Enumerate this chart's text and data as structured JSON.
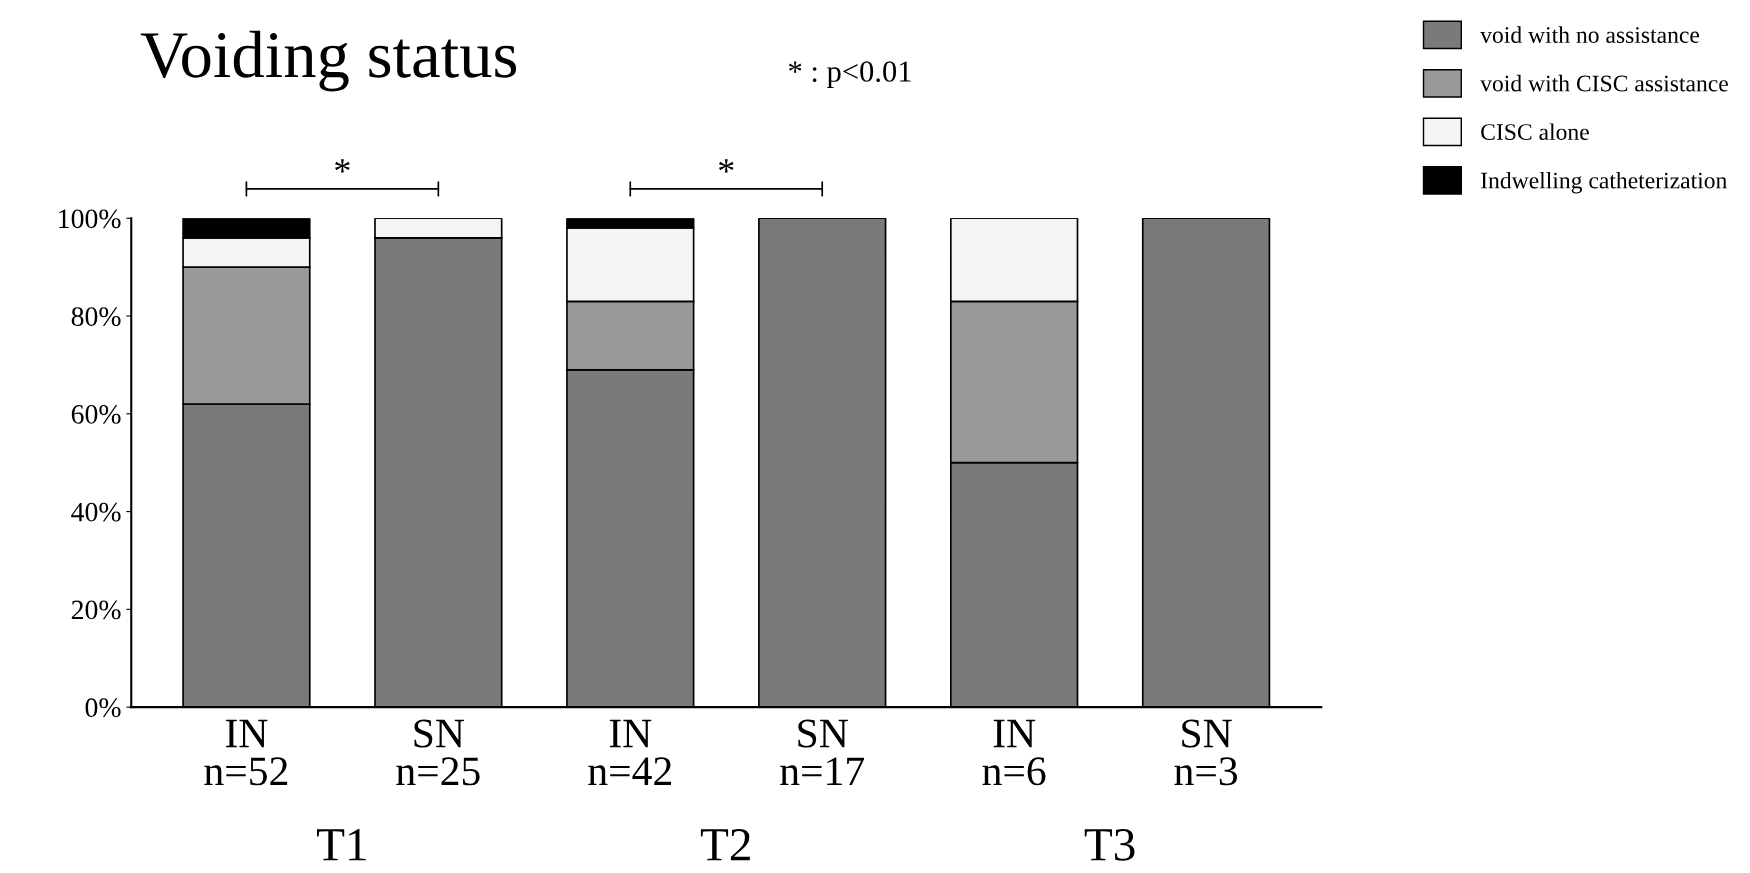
{
  "chart_data": {
    "type": "bar",
    "title": "Voiding status",
    "stacked": true,
    "categories": [
      "IN\nn=52",
      "SN\nn=25",
      "IN\nn=42",
      "SN\nn=17",
      "IN\nn=6",
      "SN\nn=3"
    ],
    "series": [
      {
        "name": "void with no assistance",
        "color": "#7a7a7a",
        "values": [
          62,
          96,
          69,
          100,
          50,
          100
        ]
      },
      {
        "name": "void with CISC assistance",
        "color": "#999999",
        "values": [
          28,
          0,
          14,
          0,
          33,
          0
        ]
      },
      {
        "name": "CISC alone",
        "color": "#f4f4f4",
        "values": [
          6,
          4,
          15,
          0,
          17,
          0
        ]
      },
      {
        "name": "Indwelling catheterization",
        "color": "#000000",
        "values": [
          4,
          0,
          2,
          0,
          0,
          0
        ]
      }
    ],
    "ylim": [
      0,
      100
    ],
    "yticks": [
      {
        "value": 0,
        "label": "0%"
      },
      {
        "value": 20,
        "label": "20%"
      },
      {
        "value": 40,
        "label": "40%"
      },
      {
        "value": 60,
        "label": "60%"
      },
      {
        "value": 80,
        "label": "80%"
      },
      {
        "value": 100,
        "label": "100%"
      }
    ],
    "grid": false,
    "legend": "top right",
    "annotations": [
      "* : p<0.01",
      {
        "text": "*",
        "x": "IN\nn=52",
        "y": 100
      },
      {
        "text": "*",
        "x": "IN\nn=42",
        "y": 100
      },
      "T1",
      "T2",
      "T3"
    ]
  }
}
